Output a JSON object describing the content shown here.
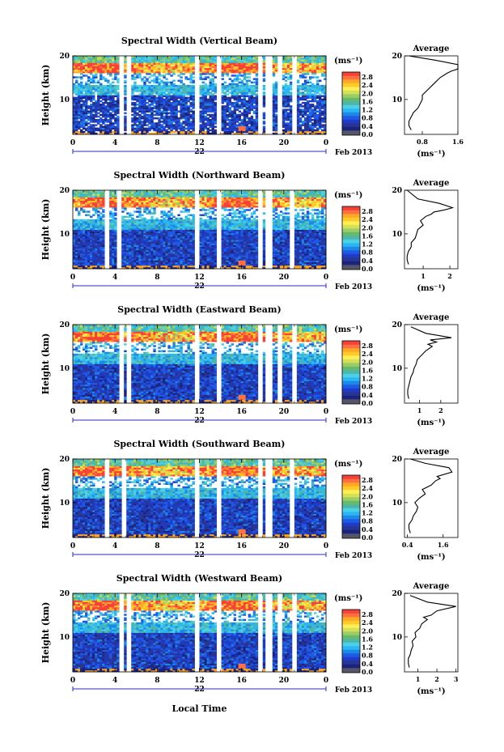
{
  "colors": {
    "scale": [
      "#1a237e",
      "#283593",
      "#1e3cc8",
      "#1e5ae6",
      "#1e88e5",
      "#29b6f6",
      "#4dd0e1",
      "#4db6ac",
      "#66bb6a",
      "#9ccc65",
      "#d4e157",
      "#ffee58",
      "#ffca28",
      "#ffa726",
      "#ff7043",
      "#f44336"
    ],
    "bottom_band": "#555566"
  },
  "panels": [
    {
      "title": "Spectral Width (Vertical Beam)",
      "ylabel": "Height (km)",
      "yticks": [
        "20",
        "10"
      ],
      "xticks": [
        "0",
        "4",
        "8",
        "12",
        "16",
        "20",
        "0"
      ],
      "day": "22",
      "date_label": "Feb 2013",
      "colorbar_unit": "(ms⁻¹)",
      "colorbar_ticks": [
        "2.8",
        "2.4",
        "2.0",
        "1.6",
        "1.2",
        "0.8",
        "0.4",
        "0.0"
      ],
      "avg_title": "Average",
      "avg_yticks": [
        "20",
        "10"
      ],
      "avg_xticks": [
        "0.8",
        "1.6"
      ],
      "avg_xlabel": "(ms⁻¹)",
      "avg_xrange": [
        0.4,
        1.6
      ],
      "avg_xtick_values": [
        0.8,
        1.6
      ]
    },
    {
      "title": "Spectral Width (Northward Beam)",
      "ylabel": "Height (km)",
      "yticks": [
        "20",
        "10"
      ],
      "xticks": [
        "0",
        "4",
        "8",
        "12",
        "16",
        "20",
        "0"
      ],
      "day": "22",
      "date_label": "Feb 2013",
      "colorbar_unit": "(ms⁻¹)",
      "colorbar_ticks": [
        "2.8",
        "2.4",
        "2.0",
        "1.6",
        "1.2",
        "0.8",
        "0.4",
        "0.0"
      ],
      "avg_title": "Average",
      "avg_yticks": [
        "20",
        "10"
      ],
      "avg_xticks": [
        "1",
        "2"
      ],
      "avg_xlabel": "(ms⁻¹)",
      "avg_xrange": [
        0.3,
        2.3
      ],
      "avg_xtick_values": [
        1,
        2
      ]
    },
    {
      "title": "Spectral Width (Eastward Beam)",
      "ylabel": "Height (km)",
      "yticks": [
        "20",
        "10"
      ],
      "xticks": [
        "0",
        "4",
        "8",
        "12",
        "16",
        "20",
        "0"
      ],
      "day": "22",
      "date_label": "Feb 2013",
      "colorbar_unit": "(ms⁻¹)",
      "colorbar_ticks": [
        "2.8",
        "2.4",
        "2.0",
        "1.6",
        "1.2",
        "0.8",
        "0.4",
        "0.0"
      ],
      "avg_title": "Average",
      "avg_yticks": [
        "20",
        "10"
      ],
      "avg_xticks": [
        "1",
        "2"
      ],
      "avg_xlabel": "(ms⁻¹)",
      "avg_xrange": [
        0.3,
        2.8
      ],
      "avg_xtick_values": [
        1,
        2
      ]
    },
    {
      "title": "Spectral Width (Southward Beam)",
      "ylabel": "Height (km)",
      "yticks": [
        "20",
        "10"
      ],
      "xticks": [
        "0",
        "4",
        "8",
        "12",
        "16",
        "20",
        "0"
      ],
      "day": "22",
      "date_label": "Feb 2013",
      "colorbar_unit": "(ms⁻¹)",
      "colorbar_ticks": [
        "2.8",
        "2.4",
        "2.0",
        "1.6",
        "1.2",
        "0.8",
        "0.4",
        "0.0"
      ],
      "avg_title": "Average",
      "avg_yticks": [
        "20",
        "10"
      ],
      "avg_xticks": [
        "0.4",
        "1.6"
      ],
      "avg_xlabel": "(ms⁻¹)",
      "avg_xrange": [
        0.3,
        2.1
      ],
      "avg_xtick_values": [
        0.4,
        1.6
      ]
    },
    {
      "title": "Spectral Width (Westward Beam)",
      "ylabel": "Height (km)",
      "yticks": [
        "20",
        "10"
      ],
      "xticks": [
        "0",
        "4",
        "8",
        "12",
        "16",
        "20",
        "0"
      ],
      "day": "22",
      "date_label": "Feb 2013",
      "colorbar_unit": "(ms⁻¹)",
      "colorbar_ticks": [
        "2.8",
        "2.4",
        "2.0",
        "1.6",
        "1.2",
        "0.8",
        "0.4",
        "0.0"
      ],
      "avg_title": "Average",
      "avg_yticks": [
        "20",
        "10"
      ],
      "avg_xticks": [
        "1",
        "2",
        "3"
      ],
      "avg_xlabel": "(ms⁻¹)",
      "avg_xrange": [
        0.3,
        3.1
      ],
      "avg_xtick_values": [
        1,
        2,
        3
      ]
    }
  ],
  "footer_xlabel": "Local Time",
  "chart_data": [
    {
      "type": "heatmap",
      "title": "Spectral Width (Vertical Beam)",
      "ylabel": "Height (km)",
      "xlim": [
        0,
        24
      ],
      "ylim": [
        2,
        20
      ],
      "value_range": [
        0.0,
        2.8
      ],
      "data_gaps_hours": [
        4.6,
        5.3,
        11.8,
        13.8,
        17.8,
        18.6,
        19.6,
        21.0
      ]
    },
    {
      "type": "line",
      "title": "Average",
      "xlabel": "(ms⁻¹)",
      "ylim": [
        2,
        20
      ],
      "x": [
        0.55,
        0.5,
        0.5,
        0.55,
        0.6,
        0.7,
        0.75,
        0.8,
        0.8,
        0.9,
        1.0,
        1.1,
        1.2,
        1.35,
        1.45,
        1.7,
        1.6,
        1.1,
        0.5
      ],
      "y": [
        3,
        4,
        5,
        6,
        7,
        8,
        9,
        10,
        11,
        12,
        13,
        14,
        15,
        16,
        16.5,
        17,
        18,
        19,
        20
      ]
    },
    {
      "type": "heatmap",
      "title": "Spectral Width (Northward Beam)",
      "ylabel": "Height (km)",
      "xlim": [
        0,
        24
      ],
      "ylim": [
        2,
        20
      ],
      "value_range": [
        0.0,
        2.8
      ],
      "data_gaps_hours": [
        3.2,
        4.4,
        11.8,
        13.8,
        17.8,
        18.6,
        20.8
      ]
    },
    {
      "type": "line",
      "title": "Average",
      "xlabel": "(ms⁻¹)",
      "ylim": [
        2,
        20
      ],
      "x": [
        0.45,
        0.4,
        0.4,
        0.45,
        0.55,
        0.55,
        0.7,
        0.75,
        0.8,
        1.0,
        0.9,
        1.1,
        1.3,
        1.4,
        1.8,
        2.1,
        1.6,
        0.8,
        0.4
      ],
      "y": [
        3,
        4,
        5,
        6,
        7,
        8,
        9,
        10,
        11,
        12,
        13,
        14,
        14.5,
        15,
        15.5,
        16,
        17,
        18,
        20
      ]
    },
    {
      "type": "heatmap",
      "title": "Spectral Width (Eastward Beam)",
      "ylabel": "Height (km)",
      "xlim": [
        0,
        24
      ],
      "ylim": [
        2,
        20
      ],
      "value_range": [
        0.0,
        2.8
      ],
      "data_gaps_hours": [
        4.6,
        5.3,
        11.8,
        13.8,
        17.8,
        18.6,
        19.6,
        21.0
      ]
    },
    {
      "type": "line",
      "title": "Average",
      "xlabel": "(ms⁻¹)",
      "ylim": [
        2,
        20
      ],
      "x": [
        0.5,
        0.45,
        0.45,
        0.5,
        0.55,
        0.6,
        0.7,
        0.75,
        0.85,
        0.9,
        1.1,
        1.3,
        1.6,
        1.4,
        1.8,
        1.5,
        2.5,
        1.3,
        0.6
      ],
      "y": [
        3,
        4,
        5,
        6,
        7,
        8,
        9,
        10,
        11,
        12,
        13,
        14,
        15,
        15.5,
        16,
        16.5,
        17,
        18,
        19.5
      ]
    },
    {
      "type": "heatmap",
      "title": "Spectral Width (Southward Beam)",
      "ylabel": "Height (km)",
      "xlim": [
        0,
        24
      ],
      "ylim": [
        2,
        20
      ],
      "value_range": [
        0.0,
        2.8
      ],
      "data_gaps_hours": [
        3.2,
        4.8,
        11.8,
        13.8,
        17.8,
        18.6,
        20.8
      ]
    },
    {
      "type": "line",
      "title": "Average",
      "xlabel": "(ms⁻¹)",
      "ylim": [
        2,
        20
      ],
      "x": [
        0.5,
        0.45,
        0.45,
        0.55,
        0.6,
        0.7,
        0.75,
        0.65,
        0.8,
        1.0,
        0.9,
        1.2,
        1.35,
        1.5,
        1.4,
        1.9,
        1.8,
        1.0,
        0.5
      ],
      "y": [
        3,
        4,
        5,
        6,
        7,
        8,
        9,
        10,
        11,
        12,
        13,
        14,
        15,
        15.5,
        16,
        17,
        18,
        19,
        20
      ]
    },
    {
      "type": "heatmap",
      "title": "Spectral Width (Westward Beam)",
      "ylabel": "Height (km)",
      "xlim": [
        0,
        24
      ],
      "ylim": [
        2,
        20
      ],
      "value_range": [
        0.0,
        2.8
      ],
      "data_gaps_hours": [
        4.6,
        5.3,
        11.8,
        13.8,
        17.8,
        18.6,
        19.6,
        21.0
      ]
    },
    {
      "type": "line",
      "title": "Average",
      "xlabel": "(ms⁻¹)",
      "ylim": [
        2,
        20
      ],
      "x": [
        0.55,
        0.5,
        0.5,
        0.6,
        0.65,
        0.75,
        0.7,
        0.9,
        0.85,
        1.1,
        1.2,
        1.5,
        1.3,
        1.7,
        2.0,
        3.0,
        1.5,
        0.6
      ],
      "y": [
        3,
        4,
        5,
        6,
        7,
        8,
        9,
        10,
        11,
        12,
        13,
        14,
        14.5,
        15,
        16,
        17,
        18,
        19.5
      ]
    }
  ]
}
